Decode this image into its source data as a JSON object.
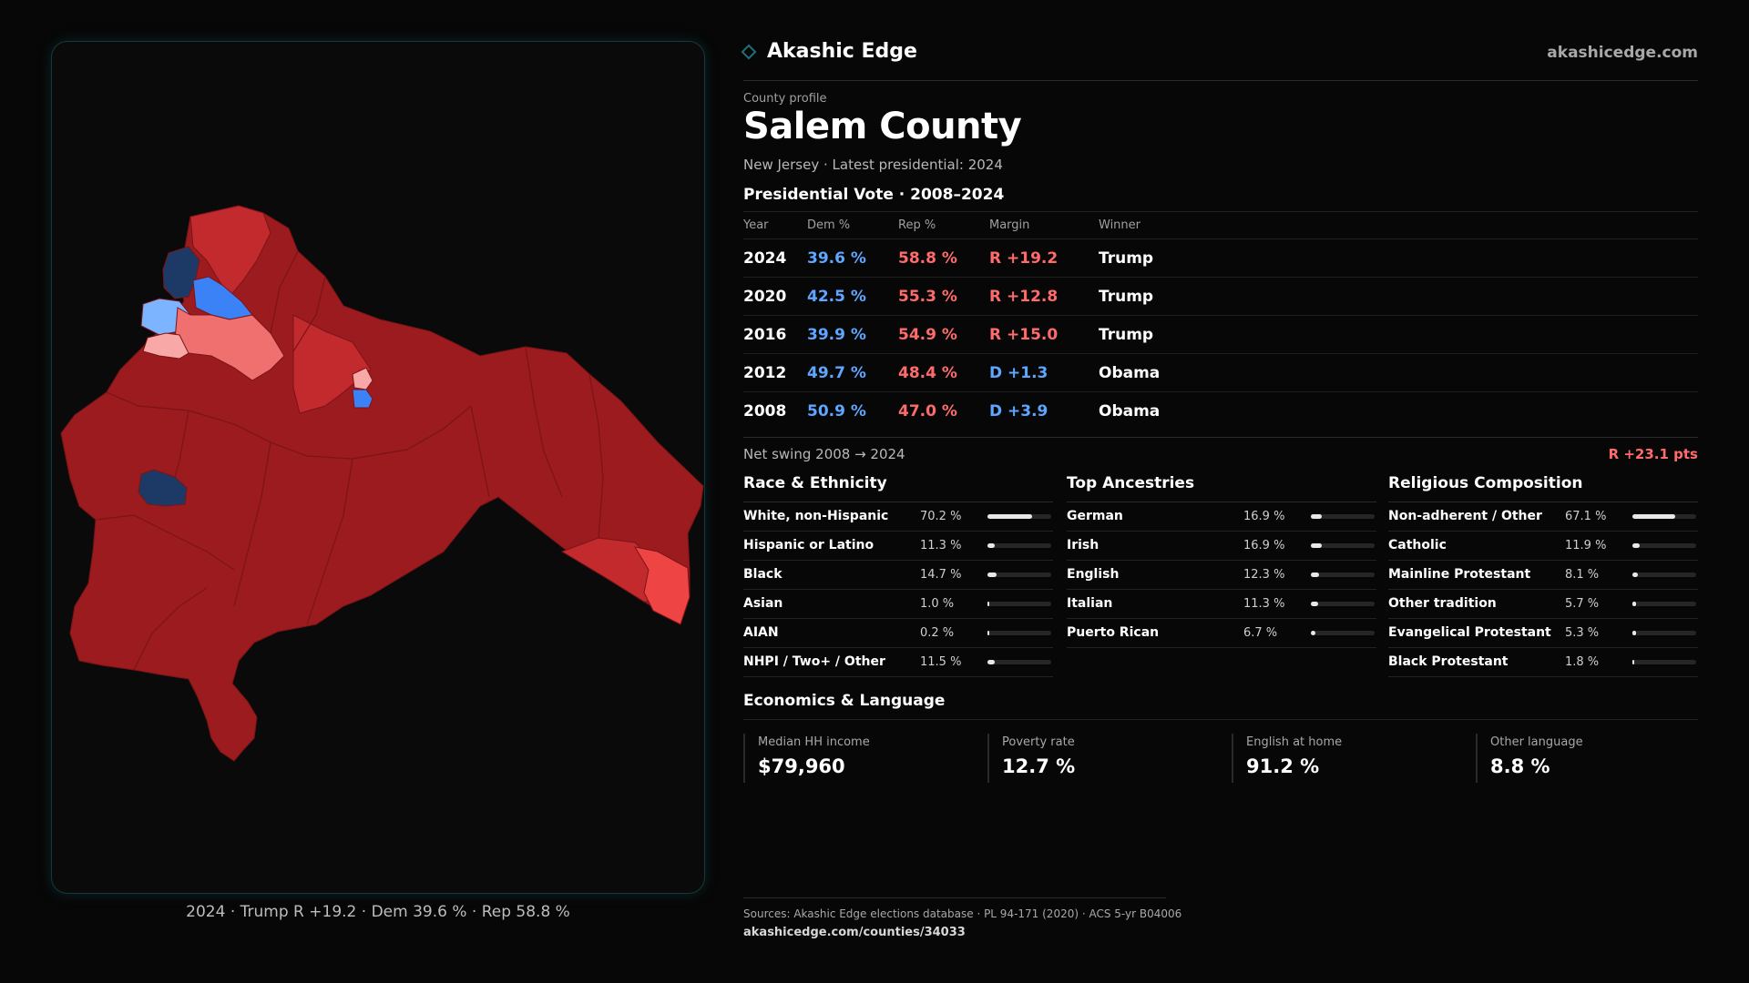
{
  "map": {
    "caption": "2024 · Trump R +19.2 · Dem 39.6 % · Rep 58.8 %",
    "colors": {
      "rep_strong": "#9b1b1e",
      "rep_mid": "#c22a2e",
      "rep_light": "#f07070",
      "rep_lean": "#ef4444",
      "rep_pale": "#f9a8a8",
      "dem_strong": "#1d3a66",
      "dem_mid": "#3b82f6",
      "dem_light": "#7db4ff",
      "border": "#7a1418"
    }
  },
  "header": {
    "brand": "Akashic Edge",
    "url": "akashicedge.com"
  },
  "profile": {
    "eyebrow": "County profile",
    "county": "Salem County",
    "subtitle": "New Jersey · Latest presidential: 2024"
  },
  "votes": {
    "title": "Presidential Vote · 2008–2024",
    "columns": [
      "Year",
      "Dem %",
      "Rep %",
      "Margin",
      "Winner"
    ],
    "rows": [
      {
        "year": "2024",
        "dem": "39.6 %",
        "rep": "58.8 %",
        "margin": "R +19.2",
        "party": "R",
        "winner": "Trump"
      },
      {
        "year": "2020",
        "dem": "42.5 %",
        "rep": "55.3 %",
        "margin": "R +12.8",
        "party": "R",
        "winner": "Trump"
      },
      {
        "year": "2016",
        "dem": "39.9 %",
        "rep": "54.9 %",
        "margin": "R +15.0",
        "party": "R",
        "winner": "Trump"
      },
      {
        "year": "2012",
        "dem": "49.7 %",
        "rep": "48.4 %",
        "margin": "D +1.3",
        "party": "D",
        "winner": "Obama"
      },
      {
        "year": "2008",
        "dem": "50.9 %",
        "rep": "47.0 %",
        "margin": "D +3.9",
        "party": "D",
        "winner": "Obama"
      }
    ],
    "swing_label": "Net swing 2008 → 2024",
    "swing_value": "R +23.1 pts"
  },
  "race": {
    "title": "Race & Ethnicity",
    "rows": [
      {
        "label": "White, non-Hispanic",
        "value": "70.2 %",
        "pct": 70.2
      },
      {
        "label": "Hispanic or Latino",
        "value": "11.3 %",
        "pct": 11.3
      },
      {
        "label": "Black",
        "value": "14.7 %",
        "pct": 14.7
      },
      {
        "label": "Asian",
        "value": "1.0 %",
        "pct": 1.0
      },
      {
        "label": "AIAN",
        "value": "0.2 %",
        "pct": 0.2
      },
      {
        "label": "NHPI / Two+ / Other",
        "value": "11.5 %",
        "pct": 11.5
      }
    ]
  },
  "ancestry": {
    "title": "Top Ancestries",
    "rows": [
      {
        "label": "German",
        "value": "16.9 %",
        "pct": 16.9
      },
      {
        "label": "Irish",
        "value": "16.9 %",
        "pct": 16.9
      },
      {
        "label": "English",
        "value": "12.3 %",
        "pct": 12.3
      },
      {
        "label": "Italian",
        "value": "11.3 %",
        "pct": 11.3
      },
      {
        "label": "Puerto Rican",
        "value": "6.7 %",
        "pct": 6.7
      }
    ]
  },
  "religion": {
    "title": "Religious Composition",
    "rows": [
      {
        "label": "Non-adherent / Other",
        "value": "67.1 %",
        "pct": 67.1
      },
      {
        "label": "Catholic",
        "value": "11.9 %",
        "pct": 11.9
      },
      {
        "label": "Mainline Protestant",
        "value": "8.1 %",
        "pct": 8.1
      },
      {
        "label": "Other tradition",
        "value": "5.7 %",
        "pct": 5.7
      },
      {
        "label": "Evangelical Protestant",
        "value": "5.3 %",
        "pct": 5.3
      },
      {
        "label": "Black Protestant",
        "value": "1.8 %",
        "pct": 1.8
      }
    ]
  },
  "economics": {
    "title": "Economics & Language",
    "stats": [
      {
        "label": "Median HH income",
        "value": "$79,960"
      },
      {
        "label": "Poverty rate",
        "value": "12.7 %"
      },
      {
        "label": "English at home",
        "value": "91.2 %"
      },
      {
        "label": "Other language",
        "value": "8.8 %"
      }
    ]
  },
  "sources": {
    "text": "Sources: Akashic Edge elections database · PL 94-171 (2020) · ACS 5-yr B04006",
    "url": "akashicedge.com/counties/34033"
  }
}
